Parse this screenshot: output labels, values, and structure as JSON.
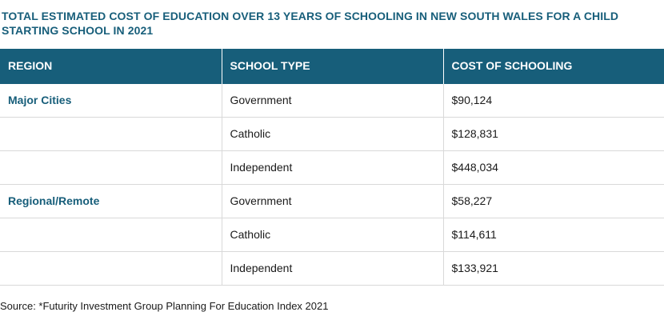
{
  "title": "TOTAL ESTIMATED COST OF EDUCATION OVER 13 YEARS OF SCHOOLING IN NEW SOUTH WALES FOR A CHILD STARTING SCHOOL IN 2021",
  "table": {
    "headers": [
      "REGION",
      "SCHOOL TYPE",
      "COST OF SCHOOLING"
    ],
    "rows": [
      {
        "region": "Major Cities",
        "school_type": "Government",
        "cost": "$90,124"
      },
      {
        "region": "",
        "school_type": "Catholic",
        "cost": "$128,831"
      },
      {
        "region": "",
        "school_type": "Independent",
        "cost": "$448,034"
      },
      {
        "region": "Regional/Remote",
        "school_type": "Government",
        "cost": "$58,227"
      },
      {
        "region": "",
        "school_type": "Catholic",
        "cost": "$114,611"
      },
      {
        "region": "",
        "school_type": "Independent",
        "cost": "$133,921"
      }
    ]
  },
  "source": "Source: *Futurity Investment Group Planning For Education Index 2021",
  "colors": {
    "header_background": "#175e7a",
    "accent_text": "#175e7a",
    "grid_line": "#d9d9d9"
  }
}
